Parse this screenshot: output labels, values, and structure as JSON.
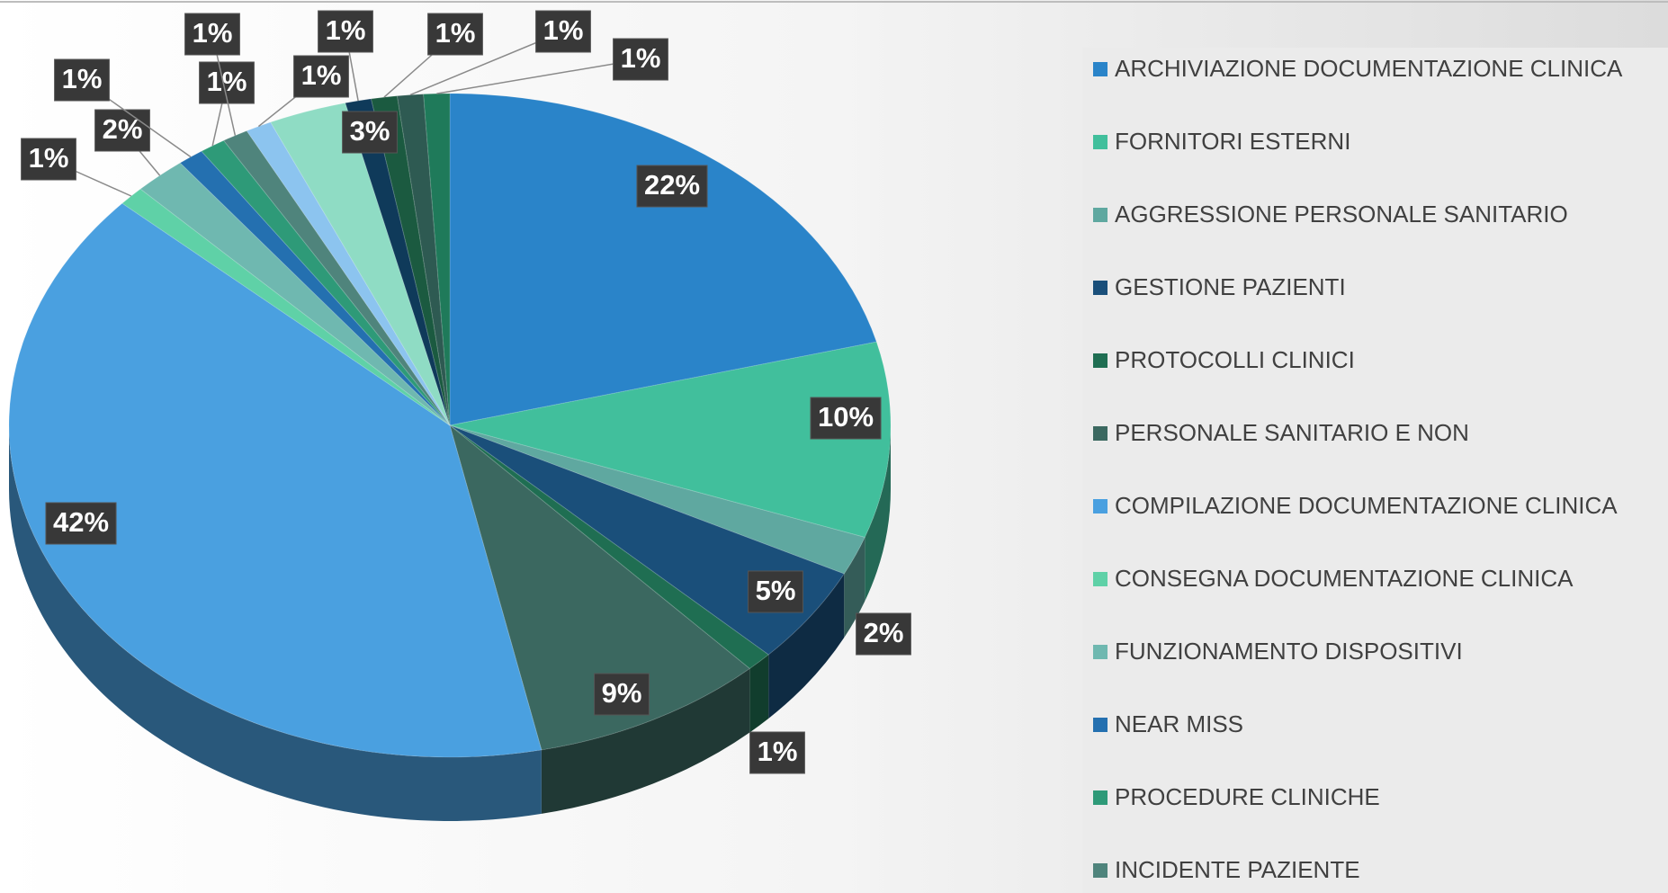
{
  "chart_data": {
    "type": "pie",
    "categories": [
      "ARCHIVIAZIONE DOCUMENTAZIONE CLINICA",
      "FORNITORI ESTERNI",
      "AGGRESSIONE PERSONALE SANITARIO",
      "GESTIONE PAZIENTI",
      "PROTOCOLLI CLINICI",
      "PERSONALE SANITARIO E NON",
      "COMPILAZIONE DOCUMENTAZIONE CLINICA",
      "CONSEGNA DOCUMENTAZIONE CLINICA",
      "FUNZIONAMENTO DISPOSITIVI",
      "NEAR MISS",
      "PROCEDURE CLINICHE",
      "INCIDENTE PAZIENTE",
      null,
      null,
      null,
      null,
      null,
      null
    ],
    "values": [
      22,
      10,
      2,
      5,
      1,
      9,
      42,
      1,
      2,
      1,
      1,
      1,
      1,
      3,
      1,
      1,
      1,
      1
    ],
    "value_labels": [
      "22%",
      "10%",
      "2%",
      "5%",
      "1%",
      "9%",
      "42%",
      "1%",
      "2%",
      "1%",
      "1%",
      "1%",
      "1%",
      "3%",
      "1%",
      "1%",
      "1%",
      "1%"
    ],
    "colors": [
      "#2a84c9",
      "#41bf9c",
      "#5fa8a0",
      "#1a4f7a",
      "#1f6e52",
      "#3b6860",
      "#4aa0e0",
      "#5fd1a7",
      "#6fb8b0",
      "#2470b0",
      "#2e9a78",
      "#4f847c",
      "#8cc4ef",
      "#8fdcc4",
      "#0f3a5a",
      "#1b5a40",
      "#2e5a52",
      "#1f7a5a"
    ],
    "legend": "right"
  }
}
